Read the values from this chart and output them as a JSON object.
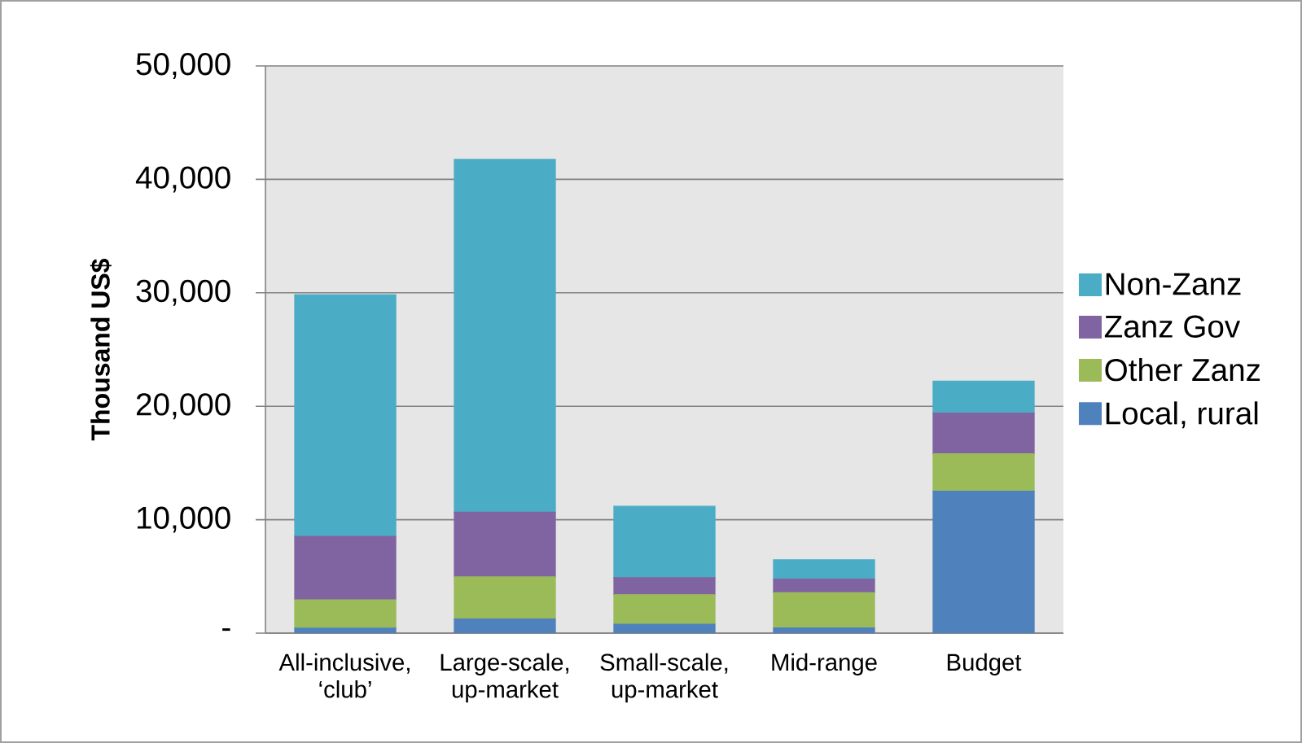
{
  "chart_data": {
    "type": "bar",
    "stacked": true,
    "ylabel": "Thousand US$",
    "categories": [
      "All-inclusive, ‘club’",
      "Large-scale, up-market",
      "Small-scale, up-market",
      "Mid-range",
      "Budget"
    ],
    "series": [
      {
        "name": "Local, rural",
        "color": "#4f81bd",
        "values": [
          430,
          1250,
          780,
          460,
          12500
        ]
      },
      {
        "name": "Other Zanz",
        "color": "#9bbb59",
        "values": [
          2500,
          3700,
          2600,
          3100,
          3300
        ]
      },
      {
        "name": "Zanz Gov",
        "color": "#8064a2",
        "values": [
          5600,
          5700,
          1500,
          1200,
          3600
        ]
      },
      {
        "name": "Non-Zanz",
        "color": "#4bacc6",
        "values": [
          21300,
          31100,
          6300,
          1700,
          2800
        ]
      }
    ],
    "ylim": [
      0,
      50000
    ],
    "yticks": [
      {
        "value": 0,
        "label": "-"
      },
      {
        "value": 10000,
        "label": "10,000"
      },
      {
        "value": 20000,
        "label": "20,000"
      },
      {
        "value": 30000,
        "label": "30,000"
      },
      {
        "value": 40000,
        "label": "40,000"
      },
      {
        "value": 50000,
        "label": "50,000"
      }
    ],
    "grid": "y",
    "legend": "right"
  }
}
